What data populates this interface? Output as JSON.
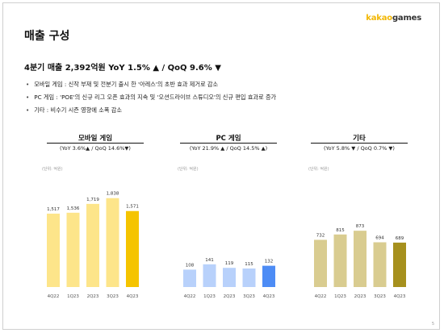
{
  "logo": {
    "part1": "kakao",
    "part2": "games"
  },
  "title": "매출 구성",
  "summary": "4분기 매출 2,392억원 YoY 1.5% ▲ / QoQ 9.6% ▼",
  "bullets": [
    "모바일 게임 : 신작 부재 및 전분기 출시 한 '아레스'의 초반 효과 제거로 감소",
    "PC 게임 : 'POE'의 신규 리그 오픈 효과의 지속 및 '오션드라이브 스튜디오'의 신규 편입 효과로 증가",
    "기타 : 비수기 시즌 영향에 소폭 감소"
  ],
  "page_number": "5",
  "chart_data": [
    {
      "type": "bar",
      "title": "모바일 게임",
      "subtitle": "(YoY 3.6%▲ / QoQ 14.6%▼)",
      "unit": "(단위: 억원)",
      "categories": [
        "4Q22",
        "1Q23",
        "2Q23",
        "3Q23",
        "4Q23"
      ],
      "values": [
        1517,
        1536,
        1719,
        1838,
        1571
      ],
      "labels": [
        "1,517",
        "1,536",
        "1,719",
        "1,838",
        "1,571"
      ],
      "colors": [
        "#fde58a",
        "#fde58a",
        "#fde58a",
        "#fde58a",
        "#f5c400"
      ],
      "ylim": [
        0,
        2000
      ]
    },
    {
      "type": "bar",
      "title": "PC 게임",
      "subtitle": "(YoY 21.9% ▲ / QoQ 14.5% ▲)",
      "unit": "(단위: 억원)",
      "categories": [
        "4Q22",
        "1Q23",
        "2Q23",
        "3Q23",
        "4Q23"
      ],
      "values": [
        108,
        141,
        119,
        115,
        132
      ],
      "labels": [
        "108",
        "141",
        "119",
        "115",
        "132"
      ],
      "colors": [
        "#b8d1fb",
        "#b8d1fb",
        "#b8d1fb",
        "#b8d1fb",
        "#4d8cf5"
      ],
      "ylim": [
        0,
        600
      ]
    },
    {
      "type": "bar",
      "title": "기타",
      "subtitle": "(YoY 5.8% ▼ / QoQ 0.7% ▼)",
      "unit": "(단위: 억원)",
      "categories": [
        "4Q22",
        "1Q23",
        "2Q23",
        "3Q23",
        "4Q23"
      ],
      "values": [
        732,
        815,
        873,
        694,
        689
      ],
      "labels": [
        "732",
        "815",
        "873",
        "694",
        "689"
      ],
      "colors": [
        "#d9cc90",
        "#d9cc90",
        "#d9cc90",
        "#d9cc90",
        "#a6901d"
      ],
      "ylim": [
        0,
        1500
      ]
    }
  ]
}
